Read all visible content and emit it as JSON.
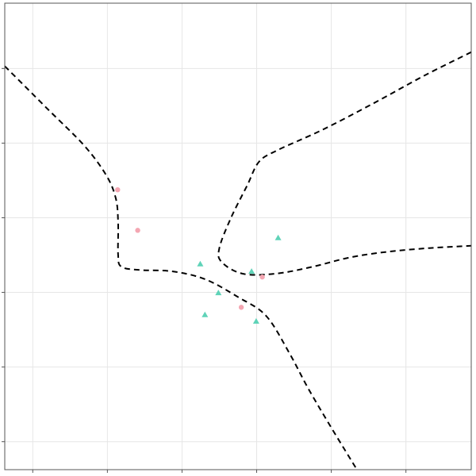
{
  "chart_data": {
    "type": "scatter",
    "title": "",
    "xlabel": "",
    "ylabel": "",
    "xlim": [
      0.0,
      10.0
    ],
    "ylim": [
      0.0,
      10.0
    ],
    "grid": true,
    "legend": "none",
    "x_gridlines": [
      0.6,
      2.2,
      3.8,
      5.4,
      7.0,
      8.6
    ],
    "y_gridlines": [
      0.6,
      2.2,
      3.8,
      5.4,
      7.0,
      8.6
    ],
    "colors": {
      "circle_series": "#f4a6b2",
      "triangle_series": "#5fd3b8",
      "boundary": "#000000",
      "grid": "#e6e6e6",
      "frame": "#555555"
    },
    "series": [
      {
        "marker": "circle",
        "points": [
          [
            2.42,
            6.0
          ],
          [
            2.85,
            5.13
          ],
          [
            5.52,
            4.13
          ],
          [
            5.07,
            3.48
          ]
        ]
      },
      {
        "marker": "triangle",
        "points": [
          [
            5.86,
            4.97
          ],
          [
            4.19,
            4.41
          ],
          [
            5.29,
            4.25
          ],
          [
            4.58,
            3.79
          ],
          [
            4.29,
            3.32
          ],
          [
            5.39,
            3.18
          ]
        ]
      }
    ],
    "boundaries": [
      {
        "name": "boundary-left",
        "points": [
          [
            0.0,
            8.65
          ],
          [
            0.9,
            7.75
          ],
          [
            1.7,
            6.95
          ],
          [
            2.17,
            6.32
          ],
          [
            2.38,
            5.82
          ],
          [
            2.43,
            5.3
          ],
          [
            2.43,
            4.6
          ],
          [
            2.5,
            4.35
          ],
          [
            2.9,
            4.28
          ],
          [
            3.6,
            4.25
          ],
          [
            4.3,
            4.08
          ],
          [
            5.0,
            3.7
          ],
          [
            5.6,
            3.3
          ],
          [
            6.1,
            2.5
          ],
          [
            6.5,
            1.75
          ],
          [
            7.0,
            0.9
          ],
          [
            7.55,
            0.0
          ]
        ]
      },
      {
        "name": "boundary-right",
        "points": [
          [
            10.0,
            8.95
          ],
          [
            9.0,
            8.45
          ],
          [
            7.9,
            7.85
          ],
          [
            6.8,
            7.28
          ],
          [
            5.85,
            6.85
          ],
          [
            5.45,
            6.6
          ],
          [
            5.2,
            6.1
          ],
          [
            4.85,
            5.4
          ],
          [
            4.6,
            4.75
          ],
          [
            4.65,
            4.45
          ],
          [
            5.1,
            4.2
          ],
          [
            5.8,
            4.2
          ],
          [
            6.6,
            4.35
          ],
          [
            7.4,
            4.55
          ],
          [
            8.2,
            4.67
          ],
          [
            9.1,
            4.75
          ],
          [
            10.0,
            4.8
          ]
        ]
      }
    ]
  }
}
